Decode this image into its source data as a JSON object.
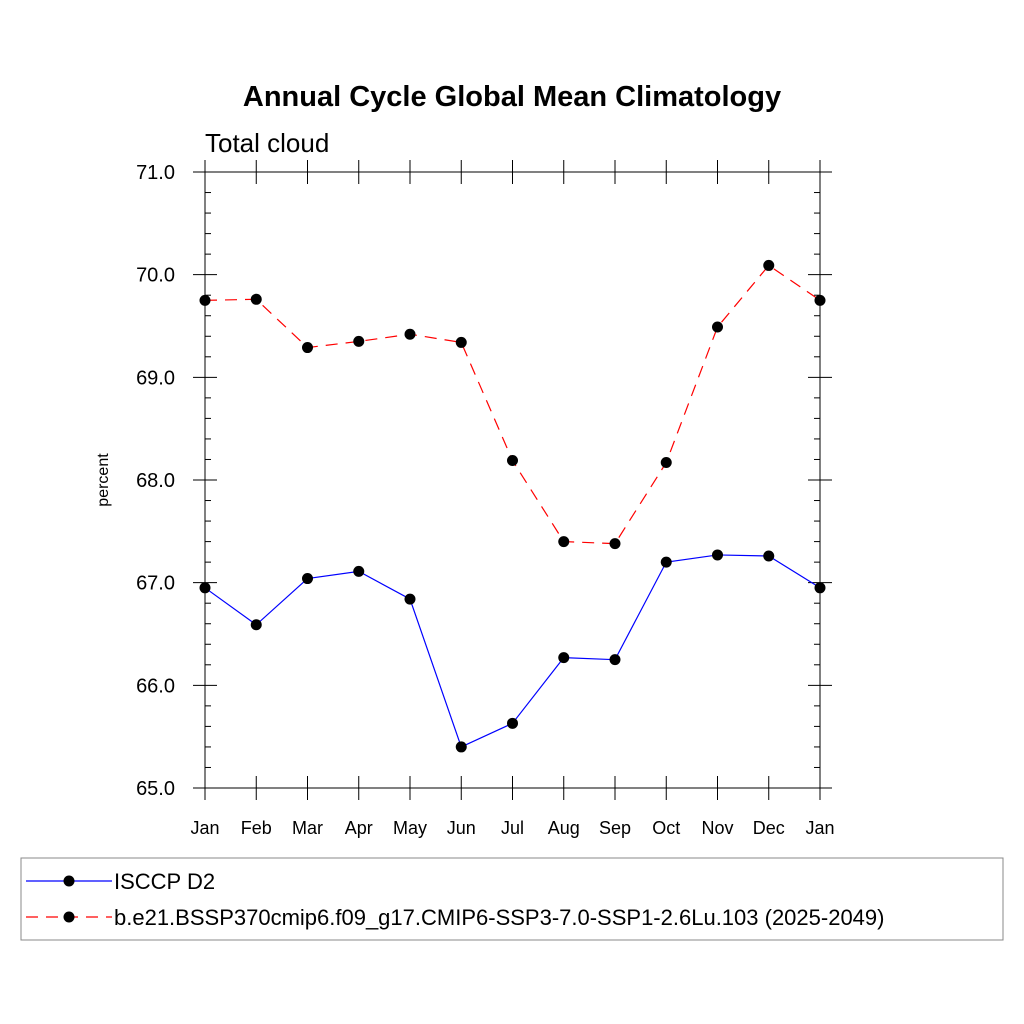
{
  "chart_data": {
    "type": "line",
    "title": "Annual Cycle Global Mean Climatology",
    "subtitle": "Total cloud",
    "xlabel": "",
    "ylabel": "percent",
    "categories": [
      "Jan",
      "Feb",
      "Mar",
      "Apr",
      "May",
      "Jun",
      "Jul",
      "Aug",
      "Sep",
      "Oct",
      "Nov",
      "Dec",
      "Jan"
    ],
    "ylim": [
      65.0,
      71.0
    ],
    "yticks": [
      "65.0",
      "66.0",
      "67.0",
      "68.0",
      "69.0",
      "70.0",
      "71.0"
    ],
    "grid": false,
    "legend_position": "bottom",
    "series": [
      {
        "name": "ISCCP D2",
        "color": "#0000ff",
        "line_style": "solid",
        "marker": "filled-circle",
        "values": [
          66.95,
          66.59,
          67.04,
          67.11,
          66.84,
          65.4,
          65.63,
          66.27,
          66.25,
          67.2,
          67.27,
          67.26,
          66.95
        ]
      },
      {
        "name": "b.e21.BSSP370cmip6.f09_g17.CMIP6-SSP3-7.0-SSP1-2.6Lu.103 (2025-2049)",
        "color": "#ff0000",
        "line_style": "dashed",
        "marker": "filled-circle",
        "values": [
          69.75,
          69.76,
          69.29,
          69.35,
          69.42,
          69.34,
          68.19,
          67.4,
          67.38,
          68.17,
          69.49,
          70.09,
          69.75
        ]
      }
    ]
  }
}
